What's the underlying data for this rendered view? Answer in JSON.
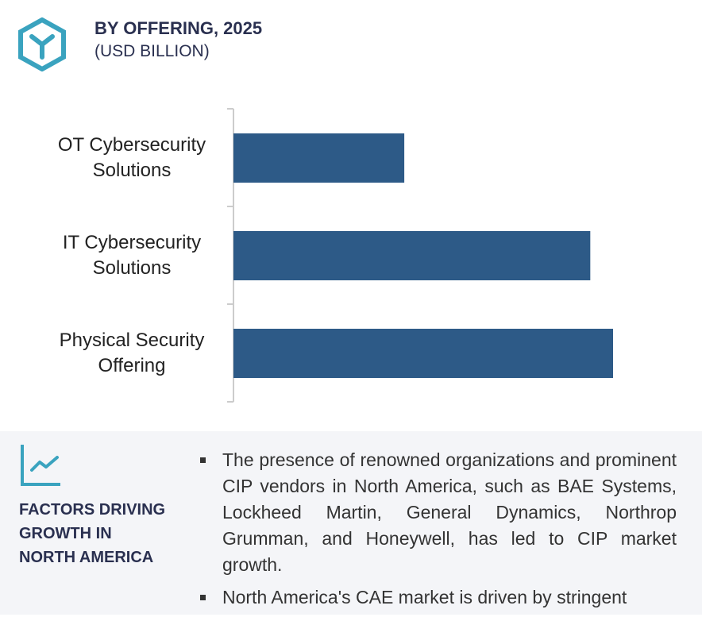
{
  "header": {
    "title": "BY OFFERING, 2025",
    "subtitle": "(USD BILLION)",
    "logo_icon": "hexagon-y-icon"
  },
  "colors": {
    "bar": "#2d5a87",
    "accent": "#3aa3bf",
    "heading": "#2a3050"
  },
  "chart_data": {
    "type": "bar",
    "orientation": "horizontal",
    "title": "BY OFFERING, 2025",
    "unit": "(USD BILLION)",
    "categories": [
      [
        "OT Cybersecurity",
        "Solutions"
      ],
      [
        "IT Cybersecurity",
        "Solutions"
      ],
      [
        "Physical Security",
        "Offering"
      ]
    ],
    "values_relative": [
      0.45,
      0.94,
      1.0
    ],
    "grid": false,
    "value_axis_labels": false
  },
  "factors": {
    "icon": "trend-chart-icon",
    "heading": [
      "FACTORS DRIVING",
      "GROWTH IN",
      "NORTH AMERICA"
    ],
    "bullets": [
      "The presence of renowned organizations and prominent CIP vendors in North America, such as BAE Systems, Lockheed Martin, General Dynamics, Northrop Grumman, and Honeywell, has led to CIP market growth.",
      "North America's CAE market is driven by stringent"
    ]
  }
}
